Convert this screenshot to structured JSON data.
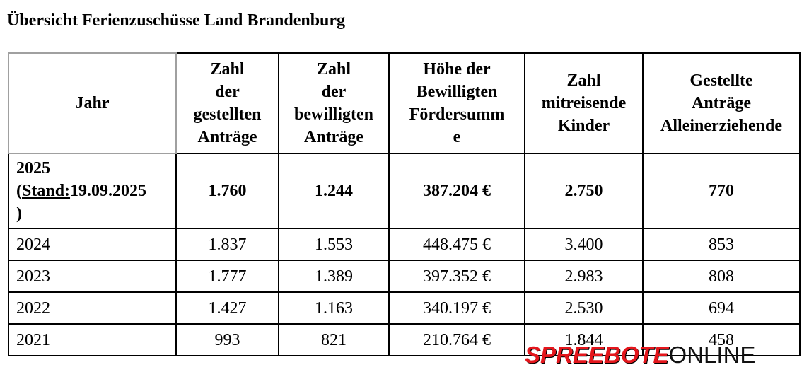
{
  "title": "Übersicht Ferienzuschüsse Land Brandenburg",
  "table": {
    "headers": [
      "Jahr",
      "Zahl der gestellten Anträge",
      "Zahl der bewilligten Anträge",
      "Höhe der Bewilligten Fördersumme",
      "Zahl mitreisende Kinder",
      "Gestellte Anträge Alleinerziehende"
    ],
    "header_lines": [
      [
        "Jahr"
      ],
      [
        "Zahl",
        "der",
        "gestellten",
        "Anträge"
      ],
      [
        "Zahl",
        "der",
        "bewilligten",
        "Anträge"
      ],
      [
        "Höhe der",
        "Bewilligten",
        "Fördersumm",
        "e"
      ],
      [
        "Zahl",
        "mitreisende",
        "Kinder"
      ],
      [
        "Gestellte",
        "Anträge",
        "Alleinerziehende"
      ]
    ],
    "current_row": {
      "year": "2025",
      "stand_open": "(",
      "stand_label": "Stand:",
      "stand_date": "19.09.2025",
      "stand_close": ")",
      "gestellt": "1.760",
      "bewilligt": "1.244",
      "summe": "387.204 €",
      "kinder": "2.750",
      "alleinerziehende": "770"
    },
    "rows": [
      {
        "year": "2024",
        "gestellt": "1.837",
        "bewilligt": "1.553",
        "summe": "448.475 €",
        "kinder": "3.400",
        "alleinerziehende": "853"
      },
      {
        "year": "2023",
        "gestellt": "1.777",
        "bewilligt": "1.389",
        "summe": "397.352 €",
        "kinder": "2.983",
        "alleinerziehende": "808"
      },
      {
        "year": "2022",
        "gestellt": "1.427",
        "bewilligt": "1.163",
        "summe": "340.197 €",
        "kinder": "2.530",
        "alleinerziehende": "694"
      },
      {
        "year": "2021",
        "gestellt": "993",
        "bewilligt": "821",
        "summe": "210.764 €",
        "kinder": "1.844",
        "alleinerziehende": "458"
      }
    ]
  },
  "watermark": {
    "brand_red": "SPREEBOTE",
    "brand_black": "ONLINE"
  },
  "colors": {
    "watermark_red": "#e4161c",
    "grid": "#000000",
    "header_first_border": "#a0a0a0"
  }
}
